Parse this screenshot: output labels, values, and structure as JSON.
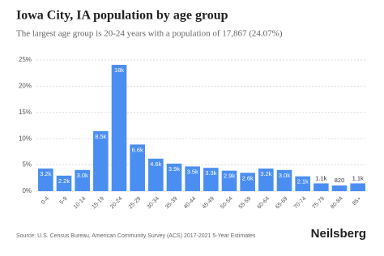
{
  "chart_data": {
    "type": "bar",
    "title": "Iowa City, IA population by age group",
    "subtitle": "The largest age group is 20-24 years with a population of 17,867 (24.07%)",
    "categories": [
      "0-4",
      "5-9",
      "10-14",
      "15-19",
      "20-24",
      "25-29",
      "30-34",
      "35-39",
      "40-44",
      "45-49",
      "50-54",
      "55-59",
      "60-64",
      "65-69",
      "70-74",
      "75-79",
      "80-84",
      "85+"
    ],
    "values": [
      4.31,
      2.96,
      4.04,
      11.45,
      24.07,
      8.89,
      6.2,
      5.25,
      4.72,
      4.45,
      3.91,
      3.5,
      4.31,
      4.04,
      2.83,
      1.48,
      1.1,
      1.48
    ],
    "value_labels": [
      "3.2k",
      "2.2k",
      "3.0k",
      "8.5k",
      "18k",
      "6.6k",
      "4.6k",
      "3.9k",
      "3.5k",
      "3.3k",
      "2.9k",
      "2.6k",
      "3.2k",
      "3.0k",
      "2.1k",
      "1.1k",
      "820",
      "1.1k"
    ],
    "color": "#4b8ef1",
    "ylim": [
      0,
      25
    ],
    "yticks": [
      {
        "value": 0,
        "label": "0%"
      },
      {
        "value": 5,
        "label": "5%"
      },
      {
        "value": 10,
        "label": "10%"
      },
      {
        "value": 15,
        "label": "15%"
      },
      {
        "value": 20,
        "label": "20%"
      },
      {
        "value": 25,
        "label": "25%"
      }
    ],
    "grid": true,
    "source": "Source: U.S. Census Bureau, American Community Survey (ACS) 2017-2021 5-Year Estimates",
    "brand": "Neilsberg"
  }
}
